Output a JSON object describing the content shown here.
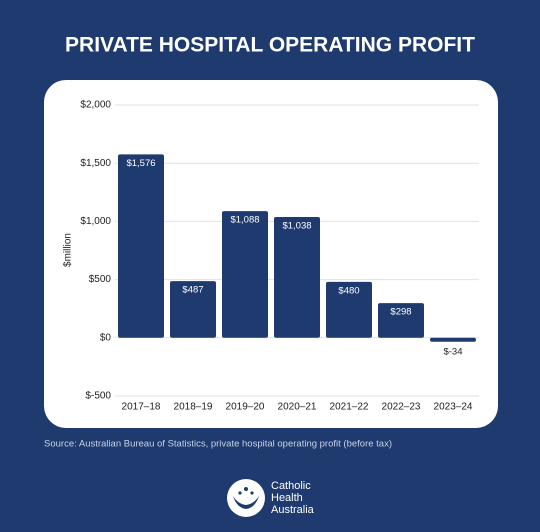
{
  "chart_data": {
    "type": "bar",
    "title": "PRIVATE HOSPITAL OPERATING PROFIT",
    "y_label": "$million",
    "categories": [
      "2017–18",
      "2018–19",
      "2019–20",
      "2020–21",
      "2021–22",
      "2022–23",
      "2023–24"
    ],
    "values": [
      1576,
      487,
      1088,
      1038,
      480,
      298,
      -34
    ],
    "value_labels": [
      "$1,576",
      "$487",
      "$1,088",
      "$1,038",
      "$480",
      "$298",
      "$-34"
    ],
    "color": "#1f3a6e",
    "ylim": [
      -500,
      2000
    ],
    "yticks": [
      {
        "value": -500,
        "label": "$-500"
      },
      {
        "value": 0,
        "label": "$0"
      },
      {
        "value": 500,
        "label": "$500"
      },
      {
        "value": 1000,
        "label": "$1,000"
      },
      {
        "value": 1500,
        "label": "$1,500"
      },
      {
        "value": 2000,
        "label": "$2,000"
      }
    ],
    "grid": true,
    "source": "Source: Australian Bureau of Statistics, private hospital operating profit (before tax)"
  },
  "logo": {
    "lines": [
      "Catholic",
      "Health",
      "Australia"
    ]
  }
}
